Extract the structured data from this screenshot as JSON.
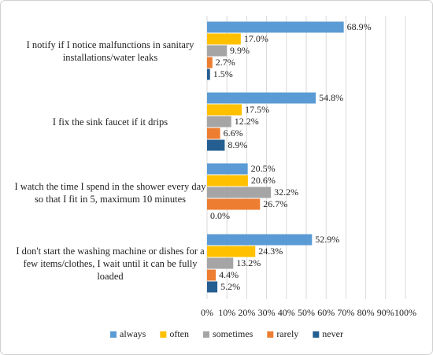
{
  "chart_data": {
    "type": "bar",
    "orientation": "horizontal",
    "categories": [
      "I notify if I notice malfunctions in sanitary installations/water leaks",
      "I fix the sink faucet if it drips",
      "I watch the time I spend in the shower every day so that I fit in 5, maximum 10 minutes",
      "I don't start the washing machine or dishes for a few items/clothes, I wait until it can be fully loaded"
    ],
    "series": [
      {
        "name": "always",
        "color": "#5b9bd5",
        "values": [
          68.9,
          54.8,
          20.5,
          52.9
        ],
        "value_labels": [
          "68.9%",
          "54.8%",
          "20.5%",
          "52.9%"
        ]
      },
      {
        "name": "often",
        "color": "#ffc000",
        "values": [
          17.0,
          17.5,
          20.6,
          24.3
        ],
        "value_labels": [
          "17.0%",
          "17.5%",
          "20.6%",
          "24.3%"
        ]
      },
      {
        "name": "sometimes",
        "color": "#a5a5a5",
        "values": [
          9.9,
          12.2,
          32.2,
          13.2
        ],
        "value_labels": [
          "9.9%",
          "12.2%",
          "32.2%",
          "13.2%"
        ]
      },
      {
        "name": "rarely",
        "color": "#ed7d31",
        "values": [
          2.7,
          6.6,
          26.7,
          4.4
        ],
        "value_labels": [
          "2.7%",
          "6.6%",
          "26.7%",
          "4.4%"
        ]
      },
      {
        "name": "never",
        "color": "#255e91",
        "values": [
          1.5,
          8.9,
          0.0,
          5.2
        ],
        "value_labels": [
          "1.5%",
          "8.9%",
          "0.0%",
          "5.2%"
        ]
      }
    ],
    "xlim": [
      0,
      100
    ],
    "xticks": [
      {
        "value": 0,
        "label": "0%"
      },
      {
        "value": 10,
        "label": "10%"
      },
      {
        "value": 20,
        "label": "20%"
      },
      {
        "value": 30,
        "label": "30%"
      },
      {
        "value": 40,
        "label": "40%"
      },
      {
        "value": 50,
        "label": "50%"
      },
      {
        "value": 60,
        "label": "60%"
      },
      {
        "value": 70,
        "label": "70%"
      },
      {
        "value": 80,
        "label": "80%"
      },
      {
        "value": 90,
        "label": "90%"
      },
      {
        "value": 100,
        "label": "100%"
      }
    ],
    "grid": true,
    "legend": "bottom"
  }
}
